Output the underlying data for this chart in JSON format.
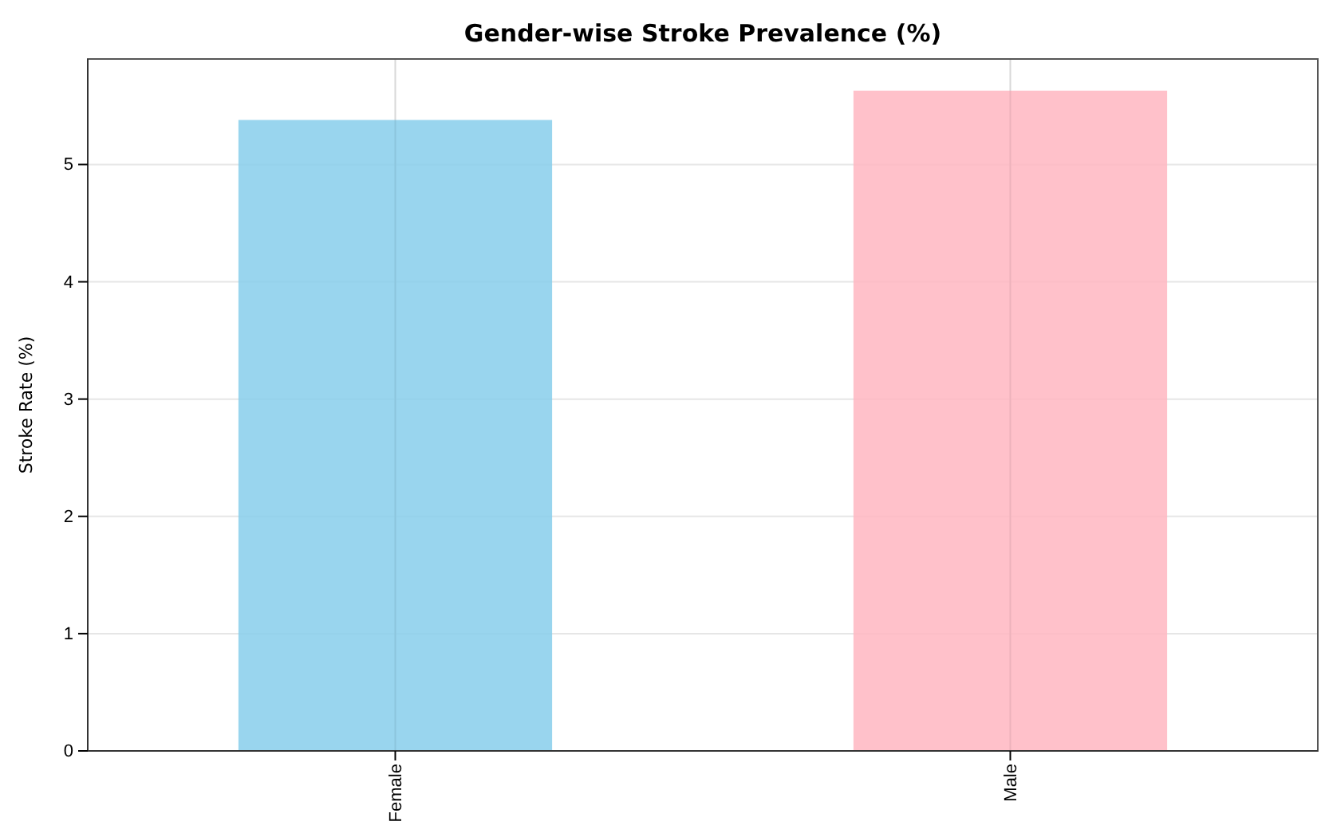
{
  "chart_data": {
    "type": "bar",
    "title": "Gender-wise Stroke Prevalence (%)",
    "ylabel": "Stroke Rate (%)",
    "categories": [
      "Female",
      "Male"
    ],
    "values": [
      5.38,
      5.63
    ],
    "colors": [
      "#87ceeb",
      "#ffb6c1"
    ],
    "ylim": [
      0,
      5.9
    ],
    "yticks": [
      0,
      1,
      2,
      3,
      4,
      5
    ],
    "grid": true
  }
}
